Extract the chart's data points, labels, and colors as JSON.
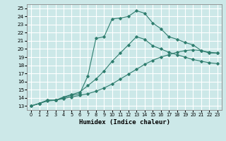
{
  "bg_color": "#cce8e8",
  "grid_color": "#ffffff",
  "line_color": "#2e7d6e",
  "xlabel": "Humidex (Indice chaleur)",
  "xlim": [
    -0.5,
    23.5
  ],
  "ylim": [
    12.5,
    25.5
  ],
  "xticks": [
    0,
    1,
    2,
    3,
    4,
    5,
    6,
    7,
    8,
    9,
    10,
    11,
    12,
    13,
    14,
    15,
    16,
    17,
    18,
    19,
    20,
    21,
    22,
    23
  ],
  "yticks": [
    13,
    14,
    15,
    16,
    17,
    18,
    19,
    20,
    21,
    22,
    23,
    24,
    25
  ],
  "curve1_x": [
    0,
    1,
    2,
    3,
    4,
    5,
    6,
    7,
    8,
    9,
    10,
    11,
    12,
    13,
    14,
    15,
    16,
    17,
    18,
    19,
    20,
    21,
    22,
    23
  ],
  "curve1_y": [
    13,
    13.3,
    13.6,
    13.7,
    13.9,
    14.1,
    14.3,
    14.5,
    14.8,
    15.2,
    15.7,
    16.3,
    16.9,
    17.5,
    18.1,
    18.6,
    19.0,
    19.3,
    19.6,
    19.8,
    19.9,
    19.8,
    19.6,
    19.5
  ],
  "curve2_x": [
    0,
    1,
    2,
    3,
    4,
    5,
    6,
    7,
    8,
    9,
    10,
    11,
    12,
    13,
    14,
    15,
    16,
    17,
    18,
    19,
    20,
    21,
    22,
    23
  ],
  "curve2_y": [
    13,
    13.3,
    13.7,
    13.7,
    14.0,
    14.3,
    14.5,
    16.7,
    21.3,
    21.5,
    23.7,
    23.8,
    24.0,
    24.7,
    24.4,
    23.2,
    22.5,
    21.5,
    21.2,
    20.8,
    20.5,
    19.8,
    19.5,
    19.5
  ],
  "curve3_x": [
    0,
    1,
    2,
    3,
    4,
    5,
    6,
    7,
    8,
    9,
    10,
    11,
    12,
    13,
    14,
    15,
    16,
    17,
    18,
    19,
    20,
    21,
    22,
    23
  ],
  "curve3_y": [
    13,
    13.3,
    13.7,
    13.7,
    14.1,
    14.4,
    14.7,
    15.5,
    16.3,
    17.3,
    18.5,
    19.5,
    20.5,
    21.5,
    21.2,
    20.4,
    20.0,
    19.6,
    19.3,
    19.0,
    18.7,
    18.5,
    18.3,
    18.2
  ]
}
